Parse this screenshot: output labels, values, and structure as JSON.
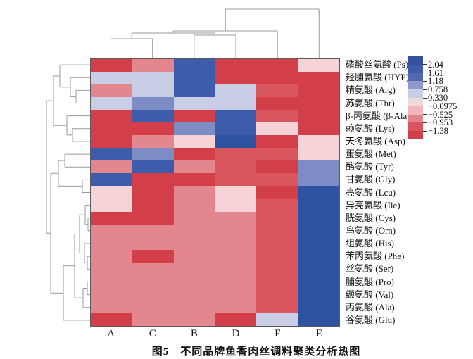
{
  "figure": {
    "caption": "图5　不同品牌鱼香肉丝调料聚类分析热图"
  },
  "chart_data": {
    "type": "heatmap",
    "title": "图5 不同品牌鱼香肉丝调料聚类分析热图",
    "description": "Cluster heatmap of amino acid content (z-scores) across six seasoning brands, with row and column dendrograms",
    "columns": [
      "A",
      "C",
      "B",
      "D",
      "F",
      "E"
    ],
    "rows": [
      "磷酸丝氨酸 (Ps)",
      "羟脯氨酸 (HYP)",
      "精氨酸 (Arg)",
      "苏氨酸 (Thr)",
      "β-丙氨酸 (β-Ala)",
      "赖氨酸 (Lys)",
      "天冬氨酸 (Asp)",
      "蛋氨酸 (Met)",
      "酪氨酸 (Tyr)",
      "甘氨酸 (Gly)",
      "亮氨酸 (Lcu)",
      "异亮氨酸 (Ile)",
      "胱氨酸 (Cys)",
      "鸟氨酸 (Orn)",
      "组氨酸 (His)",
      "苯丙氨酸 (Phe)",
      "丝氨酸 (Ser)",
      "脯氨酸 (Pro)",
      "缬氨酸 (Val)",
      "丙氨酸 (Ala)",
      "谷氨酸 (Glu)"
    ],
    "palette": {
      "deepblue": "#2e53a2",
      "dblue": "#3d5cab",
      "slate": "#7d8cc5",
      "lav": "#c9cde6",
      "lpink": "#f5d3d7",
      "salmon": "#e4868d",
      "red2": "#d9565f",
      "red1": "#d23f49"
    },
    "palette_values": {
      "deepblue": 2.04,
      "dblue": 1.61,
      "slate": 0.97,
      "lav": 0.33,
      "lpink": -0.0975,
      "salmon": -0.525,
      "red2": -0.953,
      "red1": -1.38
    },
    "cells": [
      [
        "red1",
        "salmon",
        "dblue",
        "red1",
        "red1",
        "lpink"
      ],
      [
        "lav",
        "lav",
        "dblue",
        "red1",
        "red1",
        "red1"
      ],
      [
        "salmon",
        "lav",
        "dblue",
        "lav",
        "red2",
        "red1"
      ],
      [
        "lav",
        "slate",
        "lav",
        "lav",
        "red1",
        "red1"
      ],
      [
        "red1",
        "dblue",
        "red1",
        "dblue",
        "red2",
        "red1"
      ],
      [
        "red1",
        "red1",
        "slate",
        "dblue",
        "lpink",
        "red1"
      ],
      [
        "red1",
        "salmon",
        "lpink",
        "deepblue",
        "red1",
        "lpink"
      ],
      [
        "dblue",
        "slate",
        "red1",
        "red2",
        "red2",
        "lpink"
      ],
      [
        "salmon",
        "dblue",
        "salmon",
        "red2",
        "red1",
        "slate"
      ],
      [
        "dblue",
        "red1",
        "red1",
        "red2",
        "red2",
        "slate"
      ],
      [
        "lpink",
        "red1",
        "salmon",
        "lpink",
        "red1",
        "deepblue"
      ],
      [
        "lpink",
        "red1",
        "salmon",
        "lpink",
        "red2",
        "deepblue"
      ],
      [
        "red1",
        "red1",
        "salmon",
        "salmon",
        "red2",
        "deepblue"
      ],
      [
        "salmon",
        "salmon",
        "salmon",
        "salmon",
        "red2",
        "deepblue"
      ],
      [
        "salmon",
        "salmon",
        "salmon",
        "salmon",
        "red2",
        "deepblue"
      ],
      [
        "salmon",
        "red1",
        "salmon",
        "salmon",
        "red2",
        "deepblue"
      ],
      [
        "salmon",
        "salmon",
        "salmon",
        "salmon",
        "red2",
        "deepblue"
      ],
      [
        "salmon",
        "salmon",
        "salmon",
        "salmon",
        "red2",
        "deepblue"
      ],
      [
        "salmon",
        "salmon",
        "salmon",
        "salmon",
        "red2",
        "deepblue"
      ],
      [
        "salmon",
        "salmon",
        "salmon",
        "salmon",
        "red2",
        "deepblue"
      ],
      [
        "red1",
        "salmon",
        "salmon",
        "red1",
        "lav",
        "deepblue"
      ]
    ],
    "legend": {
      "tick_labels": [
        "2.04",
        "1.61",
        "1.18",
        "0.758",
        "0.330",
        "−0.0975",
        "−0.525",
        "−0.953",
        "−1.38"
      ],
      "band_colors_top_to_bottom": [
        "#35509f",
        "#3d5cab",
        "#5269b2",
        "#8e9acd",
        "#c9cde6",
        "#f0d9dc",
        "#f0b6bc",
        "#e2828a",
        "#d9545d",
        "#d23e48"
      ]
    },
    "dendrograms": {
      "stroke_color": "#999999",
      "top_segments": [
        [
          157.5,
          83,
          157.5,
          55
        ],
        [
          216.7,
          83,
          216.7,
          55
        ],
        [
          157.5,
          55,
          216.7,
          55
        ],
        [
          275.8,
          83,
          275.8,
          50
        ],
        [
          335,
          83,
          335,
          50
        ],
        [
          275.8,
          50,
          335,
          50
        ],
        [
          187.1,
          55,
          187.1,
          47
        ],
        [
          305.4,
          50,
          305.4,
          47
        ],
        [
          187.1,
          47,
          305.4,
          47
        ],
        [
          246.2,
          47,
          246.2,
          44
        ],
        [
          394.2,
          83,
          394.2,
          44
        ],
        [
          246.2,
          44,
          394.2,
          44
        ],
        [
          320.2,
          44,
          320.2,
          13
        ],
        [
          453.3,
          83,
          453.3,
          13
        ],
        [
          320.2,
          13,
          453.3,
          13
        ]
      ],
      "left_segments": [
        [
          128,
          92.1,
          85,
          92.1
        ],
        [
          128,
          110.2,
          100,
          110.2
        ],
        [
          128,
          128.4,
          108,
          128.4
        ],
        [
          128,
          146.5,
          108,
          146.5
        ],
        [
          108,
          128.4,
          108,
          146.5
        ],
        [
          108,
          137.4,
          100,
          137.4
        ],
        [
          100,
          110.2,
          100,
          137.4
        ],
        [
          100,
          123.8,
          85,
          123.8
        ],
        [
          85,
          92.1,
          85,
          123.8
        ],
        [
          85,
          108,
          76,
          108
        ],
        [
          128,
          164.6,
          95,
          164.6
        ],
        [
          128,
          182.8,
          103,
          182.8
        ],
        [
          128,
          200.9,
          103,
          200.9
        ],
        [
          103,
          182.8,
          103,
          200.9
        ],
        [
          103,
          191.8,
          95,
          191.8
        ],
        [
          95,
          164.6,
          95,
          191.8
        ],
        [
          95,
          178.2,
          76,
          178.2
        ],
        [
          76,
          108,
          76,
          178.2
        ],
        [
          76,
          143.1,
          66,
          143.1
        ],
        [
          128,
          219.1,
          92,
          219.1
        ],
        [
          128,
          237.2,
          92,
          237.2
        ],
        [
          92,
          219.1,
          92,
          237.2
        ],
        [
          92,
          228.1,
          83,
          228.1
        ],
        [
          128,
          255.3,
          117,
          255.3
        ],
        [
          128,
          273.5,
          117,
          273.5
        ],
        [
          117,
          255.3,
          117,
          273.5
        ],
        [
          117,
          264.4,
          83,
          264.4
        ],
        [
          83,
          228.1,
          83,
          264.4
        ],
        [
          83,
          246.3,
          72,
          246.3
        ],
        [
          128,
          291.6,
          121,
          291.6
        ],
        [
          128,
          309.8,
          125,
          309.8
        ],
        [
          128,
          327.9,
          125,
          327.9
        ],
        [
          125,
          309.8,
          125,
          327.9
        ],
        [
          125,
          318.8,
          121,
          318.8
        ],
        [
          121,
          291.6,
          121,
          318.8
        ],
        [
          121,
          305.2,
          113,
          305.2
        ],
        [
          128,
          346,
          120,
          346
        ],
        [
          128,
          364.2,
          124,
          364.2
        ],
        [
          128,
          382.3,
          124,
          382.3
        ],
        [
          124,
          364.2,
          124,
          382.3
        ],
        [
          124,
          373.2,
          120,
          373.2
        ],
        [
          120,
          346,
          120,
          373.2
        ],
        [
          120,
          359.6,
          113,
          359.6
        ],
        [
          113,
          305.2,
          113,
          359.6
        ],
        [
          113,
          332.4,
          106,
          332.4
        ],
        [
          128,
          400.4,
          124,
          400.4
        ],
        [
          128,
          418.6,
          124,
          418.6
        ],
        [
          124,
          400.4,
          124,
          418.6
        ],
        [
          124,
          409.5,
          118,
          409.5
        ],
        [
          128,
          436.7,
          118,
          436.7
        ],
        [
          118,
          409.5,
          118,
          436.7
        ],
        [
          118,
          423.1,
          106,
          423.1
        ],
        [
          106,
          332.4,
          106,
          423.1
        ],
        [
          106,
          377.7,
          90,
          377.7
        ],
        [
          128,
          454.9,
          90,
          454.9
        ],
        [
          90,
          377.7,
          90,
          454.9
        ],
        [
          90,
          416.3,
          72,
          416.3
        ],
        [
          72,
          246.3,
          72,
          416.3
        ],
        [
          72,
          331.3,
          66,
          331.3
        ],
        [
          66,
          143.1,
          66,
          331.3
        ]
      ]
    }
  }
}
